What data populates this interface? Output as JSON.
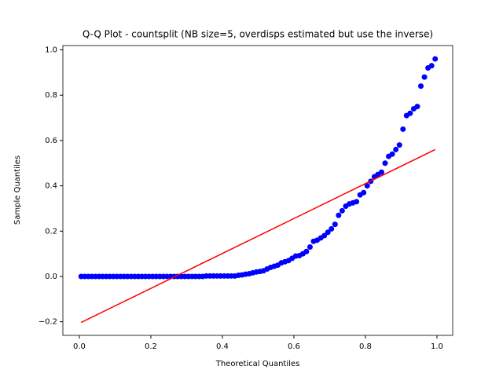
{
  "chart_data": {
    "type": "scatter",
    "title": "Q-Q Plot - countsplit (NB size=5, overdisps estimated but use the inverse)",
    "x_label": "Theoretical Quantiles",
    "y_label": "Sample Quantiles",
    "xlim": [
      -0.046,
      1.044
    ],
    "ylim": [
      -0.26,
      1.019
    ],
    "xticks": [
      {
        "value": 0,
        "label": "0.0"
      },
      {
        "value": 0.2,
        "label": "0.2"
      },
      {
        "value": 0.4,
        "label": "0.4"
      },
      {
        "value": 0.6,
        "label": "0.6"
      },
      {
        "value": 0.8,
        "label": "0.8"
      },
      {
        "value": 1,
        "label": "1.0"
      }
    ],
    "yticks": [
      {
        "value": -0.2,
        "label": "−0.2"
      },
      {
        "value": 0,
        "label": "0.0"
      },
      {
        "value": 0.2,
        "label": "0.2"
      },
      {
        "value": 0.4,
        "label": "0.4"
      },
      {
        "value": 0.6,
        "label": "0.6"
      },
      {
        "value": 0.8,
        "label": "0.8"
      },
      {
        "value": 1,
        "label": "1.0"
      }
    ],
    "grid": false,
    "series": [
      {
        "type": "scatter",
        "color": "#0000ff",
        "x": [
          0.005,
          0.015,
          0.025,
          0.035,
          0.045,
          0.055,
          0.065,
          0.075,
          0.085,
          0.095,
          0.105,
          0.115,
          0.125,
          0.135,
          0.145,
          0.155,
          0.165,
          0.175,
          0.185,
          0.195,
          0.205,
          0.215,
          0.225,
          0.235,
          0.245,
          0.255,
          0.265,
          0.275,
          0.285,
          0.295,
          0.305,
          0.315,
          0.325,
          0.335,
          0.345,
          0.355,
          0.365,
          0.375,
          0.385,
          0.395,
          0.405,
          0.415,
          0.425,
          0.435,
          0.445,
          0.455,
          0.465,
          0.475,
          0.485,
          0.495,
          0.505,
          0.515,
          0.525,
          0.535,
          0.545,
          0.555,
          0.565,
          0.575,
          0.585,
          0.595,
          0.605,
          0.615,
          0.625,
          0.635,
          0.645,
          0.655,
          0.665,
          0.675,
          0.685,
          0.695,
          0.705,
          0.715,
          0.725,
          0.735,
          0.745,
          0.755,
          0.765,
          0.775,
          0.785,
          0.795,
          0.805,
          0.815,
          0.825,
          0.835,
          0.845,
          0.855,
          0.865,
          0.875,
          0.885,
          0.895,
          0.905,
          0.915,
          0.925,
          0.935,
          0.945,
          0.955,
          0.965,
          0.975,
          0.985,
          0.995
        ],
        "values": [
          0,
          0,
          0,
          0,
          0,
          0,
          0,
          0,
          0,
          0,
          0,
          0,
          0,
          0,
          0,
          0,
          0,
          0,
          0,
          0,
          0,
          0,
          0,
          0,
          0,
          0,
          0,
          0,
          0,
          0,
          0,
          0,
          0,
          0,
          0,
          0.002,
          0.002,
          0.002,
          0.002,
          0.002,
          0.002,
          0.002,
          0.002,
          0.002,
          0.005,
          0.007,
          0.01,
          0.012,
          0.016,
          0.02,
          0.022,
          0.025,
          0.033,
          0.04,
          0.045,
          0.05,
          0.06,
          0.065,
          0.07,
          0.08,
          0.09,
          0.092,
          0.1,
          0.11,
          0.13,
          0.155,
          0.16,
          0.17,
          0.18,
          0.195,
          0.21,
          0.23,
          0.27,
          0.29,
          0.31,
          0.32,
          0.325,
          0.33,
          0.36,
          0.37,
          0.4,
          0.42,
          0.44,
          0.45,
          0.46,
          0.5,
          0.53,
          0.54,
          0.56,
          0.58,
          0.65,
          0.71,
          0.72,
          0.74,
          0.75,
          0.84,
          0.88,
          0.92,
          0.93,
          0.96
        ]
      },
      {
        "type": "line",
        "color": "#ff0000",
        "x": [
          0.005,
          0.995
        ],
        "values": [
          -0.203,
          0.56
        ]
      }
    ]
  }
}
